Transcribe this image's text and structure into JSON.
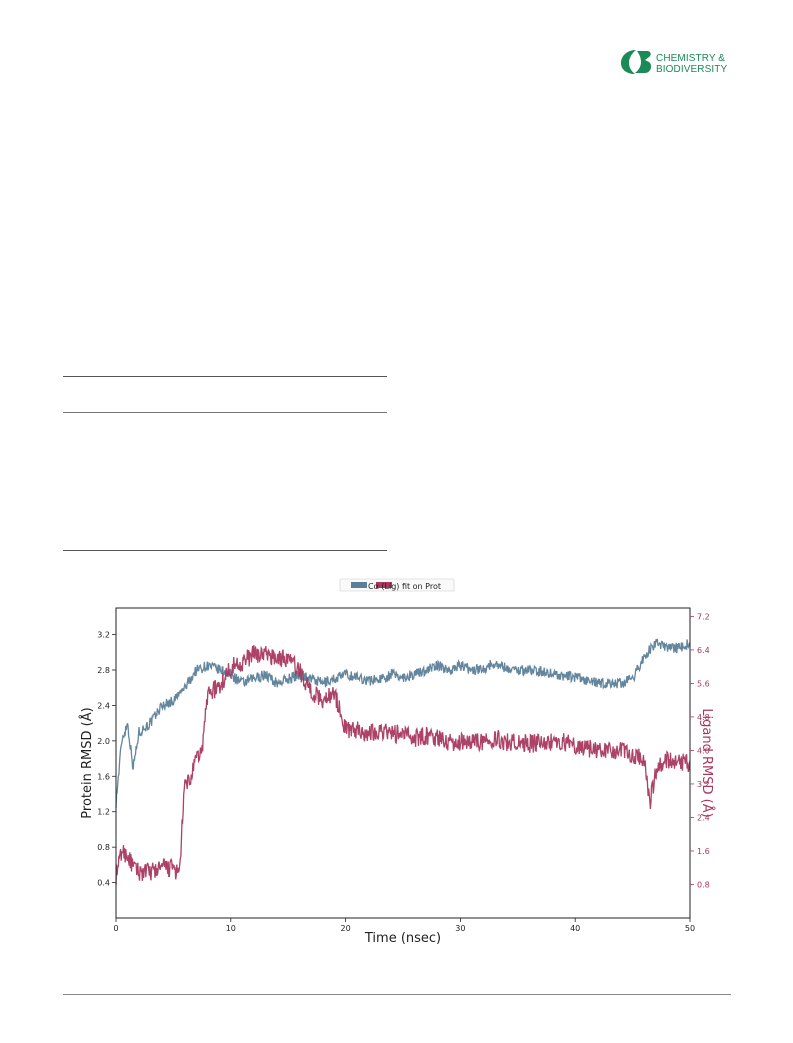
{
  "journal": {
    "name_line1": "CHEMISTRY &",
    "name_line2": "BIODIVERSITY",
    "brand_color": "#1a8a57"
  },
  "chart_data": {
    "type": "line",
    "legend": {
      "text": "Cα (Lig) fit on Prot",
      "placement": "top-center"
    },
    "xlabel": "Time (nsec)",
    "ylabel_left": "Protein RMSD (Å)",
    "ylabel_right": "Ligand RMSD (Å)",
    "xlim": [
      0,
      50
    ],
    "ylim_left": [
      0,
      3.5
    ],
    "ylim_right": [
      0,
      7.4
    ],
    "x_ticks": [
      "0",
      "10",
      "20",
      "30",
      "40",
      "50"
    ],
    "y_ticks_left": [
      "0.4",
      "0.8",
      "1.2",
      "1.6",
      "2.0",
      "2.4",
      "2.8",
      "3.2"
    ],
    "y_ticks_right": [
      "0.8",
      "1.6",
      "2.4",
      "3.2",
      "4.0",
      "4.8",
      "5.6",
      "6.4",
      "7.2"
    ],
    "grid": false,
    "series": [
      {
        "color": "#5b7f99",
        "axis": "left",
        "x": [
          0,
          0.5,
          1,
          1.5,
          2,
          3,
          4,
          5,
          6,
          7,
          8,
          9,
          10,
          11,
          12,
          13,
          14,
          15,
          16,
          17,
          18,
          19,
          20,
          21,
          22,
          23,
          24,
          25,
          26,
          27,
          28,
          29,
          30,
          31,
          32,
          33,
          34,
          35,
          36,
          37,
          38,
          39,
          40,
          41,
          42,
          43,
          44,
          45,
          46,
          47,
          48,
          49,
          50
        ],
        "y": [
          1.3,
          2.0,
          2.2,
          1.7,
          2.1,
          2.2,
          2.4,
          2.45,
          2.6,
          2.8,
          2.85,
          2.8,
          2.75,
          2.65,
          2.7,
          2.75,
          2.65,
          2.7,
          2.75,
          2.7,
          2.65,
          2.7,
          2.75,
          2.72,
          2.68,
          2.7,
          2.75,
          2.72,
          2.75,
          2.8,
          2.85,
          2.8,
          2.85,
          2.8,
          2.82,
          2.88,
          2.82,
          2.8,
          2.8,
          2.78,
          2.76,
          2.73,
          2.72,
          2.68,
          2.65,
          2.65,
          2.65,
          2.7,
          2.95,
          3.1,
          3.05,
          3.05,
          3.1
        ]
      },
      {
        "color": "#a8385e",
        "axis": "right",
        "x": [
          0,
          0.5,
          1,
          1.5,
          2,
          3,
          4,
          5,
          5.5,
          6,
          6.5,
          7,
          7.5,
          8,
          9,
          10,
          11,
          12,
          13,
          14,
          15,
          16,
          17,
          18,
          19,
          20,
          21,
          22,
          23,
          24,
          25,
          26,
          27,
          28,
          29,
          30,
          31,
          32,
          33,
          34,
          35,
          36,
          37,
          38,
          39,
          40,
          41,
          42,
          43,
          44,
          45,
          46,
          46.5,
          47,
          48,
          49,
          50
        ],
        "y": [
          1.0,
          1.6,
          1.5,
          1.2,
          1.1,
          1.1,
          1.2,
          1.2,
          1.0,
          3.2,
          3.3,
          3.8,
          4.0,
          5.4,
          5.5,
          6.0,
          6.1,
          6.3,
          6.3,
          6.2,
          6.2,
          5.9,
          5.4,
          5.2,
          5.4,
          4.5,
          4.5,
          4.4,
          4.5,
          4.4,
          4.4,
          4.3,
          4.35,
          4.3,
          4.2,
          4.2,
          4.25,
          4.2,
          4.3,
          4.2,
          4.2,
          4.15,
          4.2,
          4.2,
          4.2,
          4.1,
          4.05,
          4.0,
          4.0,
          4.0,
          3.9,
          3.8,
          2.7,
          3.5,
          3.8,
          3.7,
          3.7
        ]
      }
    ]
  }
}
